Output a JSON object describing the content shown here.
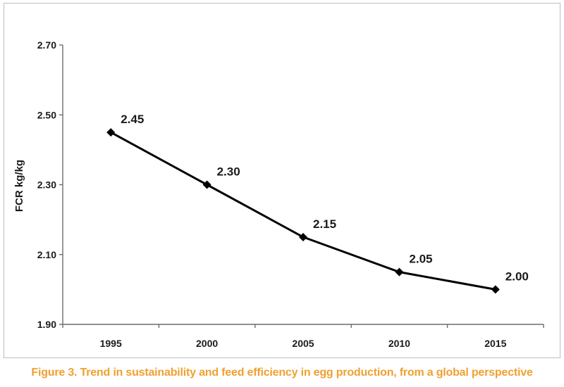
{
  "chart_data": {
    "type": "line",
    "title": "",
    "xlabel": "",
    "ylabel": "FCR kg/kg",
    "categories": [
      "1995",
      "2000",
      "2005",
      "2010",
      "2015"
    ],
    "series": [
      {
        "values": [
          2.45,
          2.3,
          2.15,
          2.05,
          2.0
        ],
        "labels": [
          "2.45",
          "2.30",
          "2.15",
          "2.05",
          "2.00"
        ]
      }
    ],
    "ylim": [
      1.9,
      2.7
    ],
    "yticks": [
      "1.90",
      "2.10",
      "2.30",
      "2.50",
      "2.70"
    ],
    "grid": false,
    "legend": "none",
    "line_color": "#000000"
  },
  "caption": {
    "text": "Figure 3. Trend in sustainability and feed efficiency in egg production, from a global perspective",
    "color": "#f0a030"
  }
}
